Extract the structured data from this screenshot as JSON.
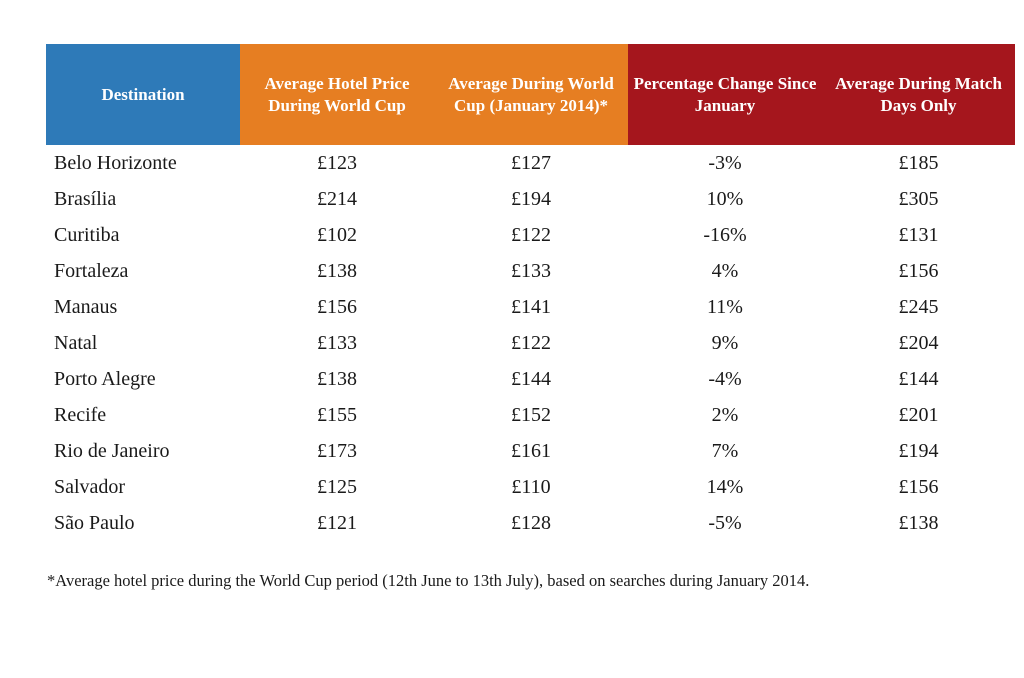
{
  "header_colors": {
    "destination": "#2e7ab8",
    "hotel_price": "#e67e22",
    "january": "#e67e22",
    "pct_change": "#a5161d",
    "match_days": "#a5161d"
  },
  "headers": {
    "destination": "Destination",
    "hotel_price": "Average Hotel Price During World Cup",
    "january": "Average During World Cup (January 2014)*",
    "pct_change": "Percentage Change Since January",
    "match_days": "Average During Match Days Only"
  },
  "chart_data": {
    "type": "table",
    "columns": [
      "Destination",
      "Average Hotel Price During World Cup",
      "Average During World Cup (January 2014)*",
      "Percentage Change Since January",
      "Average During Match Days Only"
    ],
    "rows": [
      [
        "Belo Horizonte",
        "£123",
        "£127",
        "-3%",
        "£185"
      ],
      [
        "Brasília",
        "£214",
        "£194",
        "10%",
        "£305"
      ],
      [
        "Curitiba",
        "£102",
        "£122",
        "-16%",
        "£131"
      ],
      [
        "Fortaleza",
        "£138",
        "£133",
        "4%",
        "£156"
      ],
      [
        "Manaus",
        "£156",
        "£141",
        "11%",
        "£245"
      ],
      [
        "Natal",
        "£133",
        "£122",
        "9%",
        "£204"
      ],
      [
        "Porto Alegre",
        "£138",
        "£144",
        "-4%",
        "£144"
      ],
      [
        "Recife",
        "£155",
        "£152",
        "2%",
        "£201"
      ],
      [
        "Rio de Janeiro",
        "£173",
        "£161",
        "7%",
        "£194"
      ],
      [
        "Salvador",
        "£125",
        "£110",
        "14%",
        "£156"
      ],
      [
        "São Paulo",
        "£121",
        "£128",
        "-5%",
        "£138"
      ]
    ]
  },
  "footnote": "*Average hotel price during the World Cup period (12th June to 13th July), based on searches during January 2014."
}
